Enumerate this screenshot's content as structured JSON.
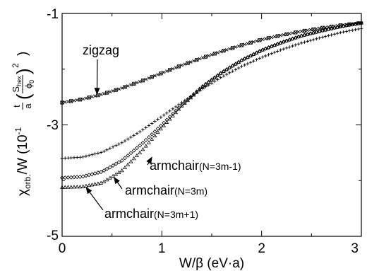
{
  "chart_data": {
    "type": "scatter",
    "title": "",
    "xlabel": "W/β (eV·a)",
    "ylabel": {
      "main": "χ",
      "sub": "orb.",
      "rest": "/W (10",
      "exp": "-1",
      "prefactor_num": "t",
      "prefactor_den": "a",
      "frac_num": "S",
      "frac_num_sub": "hex",
      "frac_den": "ϕ",
      "frac_den_sub": "0",
      "power": "2",
      "close": ")"
    },
    "xlim": [
      0,
      3
    ],
    "ylim": [
      -5,
      -1
    ],
    "x_ticks": [
      "0",
      "1",
      "2",
      "3"
    ],
    "y_ticks": [
      "-1",
      "-3",
      "-5"
    ],
    "y_tick_values": [
      -1,
      -3,
      -5
    ],
    "grid": false,
    "legend": "none",
    "series": [
      {
        "marker": "x",
        "x": [
          0,
          0.2,
          0.4,
          0.6,
          0.8,
          1.0,
          1.2,
          1.4,
          1.6,
          1.8,
          2.0,
          2.2,
          2.4,
          2.6,
          2.8,
          3.0
        ],
        "y": [
          -2.6,
          -2.54,
          -2.45,
          -2.34,
          -2.21,
          -2.07,
          -1.93,
          -1.8,
          -1.68,
          -1.57,
          -1.47,
          -1.39,
          -1.32,
          -1.26,
          -1.21,
          -1.17
        ]
      },
      {
        "marker": "+",
        "x": [
          0,
          0.2,
          0.4,
          0.6,
          0.8,
          1.0,
          1.2,
          1.4,
          1.6,
          1.8,
          2.0,
          2.2,
          2.4,
          2.6,
          2.8,
          3.0
        ],
        "y": [
          -3.6,
          -3.58,
          -3.49,
          -3.32,
          -3.1,
          -2.85,
          -2.6,
          -2.36,
          -2.14,
          -1.95,
          -1.79,
          -1.65,
          -1.53,
          -1.43,
          -1.34,
          -1.27
        ]
      },
      {
        "marker": "diamond",
        "x": [
          0,
          0.2,
          0.4,
          0.6,
          0.8,
          1.0,
          1.2,
          1.4,
          1.6,
          1.8,
          2.0,
          2.2,
          2.4,
          2.6,
          2.8,
          3.0
        ],
        "y": [
          -3.95,
          -3.93,
          -3.84,
          -3.64,
          -3.34,
          -3.0,
          -2.64,
          -2.32,
          -2.06,
          -1.84,
          -1.66,
          -1.52,
          -1.4,
          -1.31,
          -1.23,
          -1.17
        ]
      },
      {
        "marker": "triangle",
        "x": [
          0,
          0.2,
          0.4,
          0.6,
          0.8,
          1.0,
          1.2,
          1.4,
          1.6,
          1.8,
          2.0,
          2.2,
          2.4,
          2.6,
          2.8,
          3.0
        ],
        "y": [
          -4.12,
          -4.11,
          -4.04,
          -3.82,
          -3.46,
          -3.05,
          -2.66,
          -2.33,
          -2.06,
          -1.84,
          -1.66,
          -1.52,
          -1.4,
          -1.31,
          -1.23,
          -1.17
        ]
      }
    ],
    "annotations": [
      {
        "label": "zigzag",
        "suffix": "",
        "point": [
          0.35,
          -2.45
        ]
      },
      {
        "label": "armchair",
        "suffix": "(N=3m-1)",
        "point": [
          0.9,
          -3.58
        ]
      },
      {
        "label": "armchair",
        "suffix": "(N=3m)",
        "point": [
          0.52,
          -3.94
        ]
      },
      {
        "label": "armchair",
        "suffix": "(N=3m+1)",
        "point": [
          0.24,
          -4.12
        ]
      }
    ]
  }
}
